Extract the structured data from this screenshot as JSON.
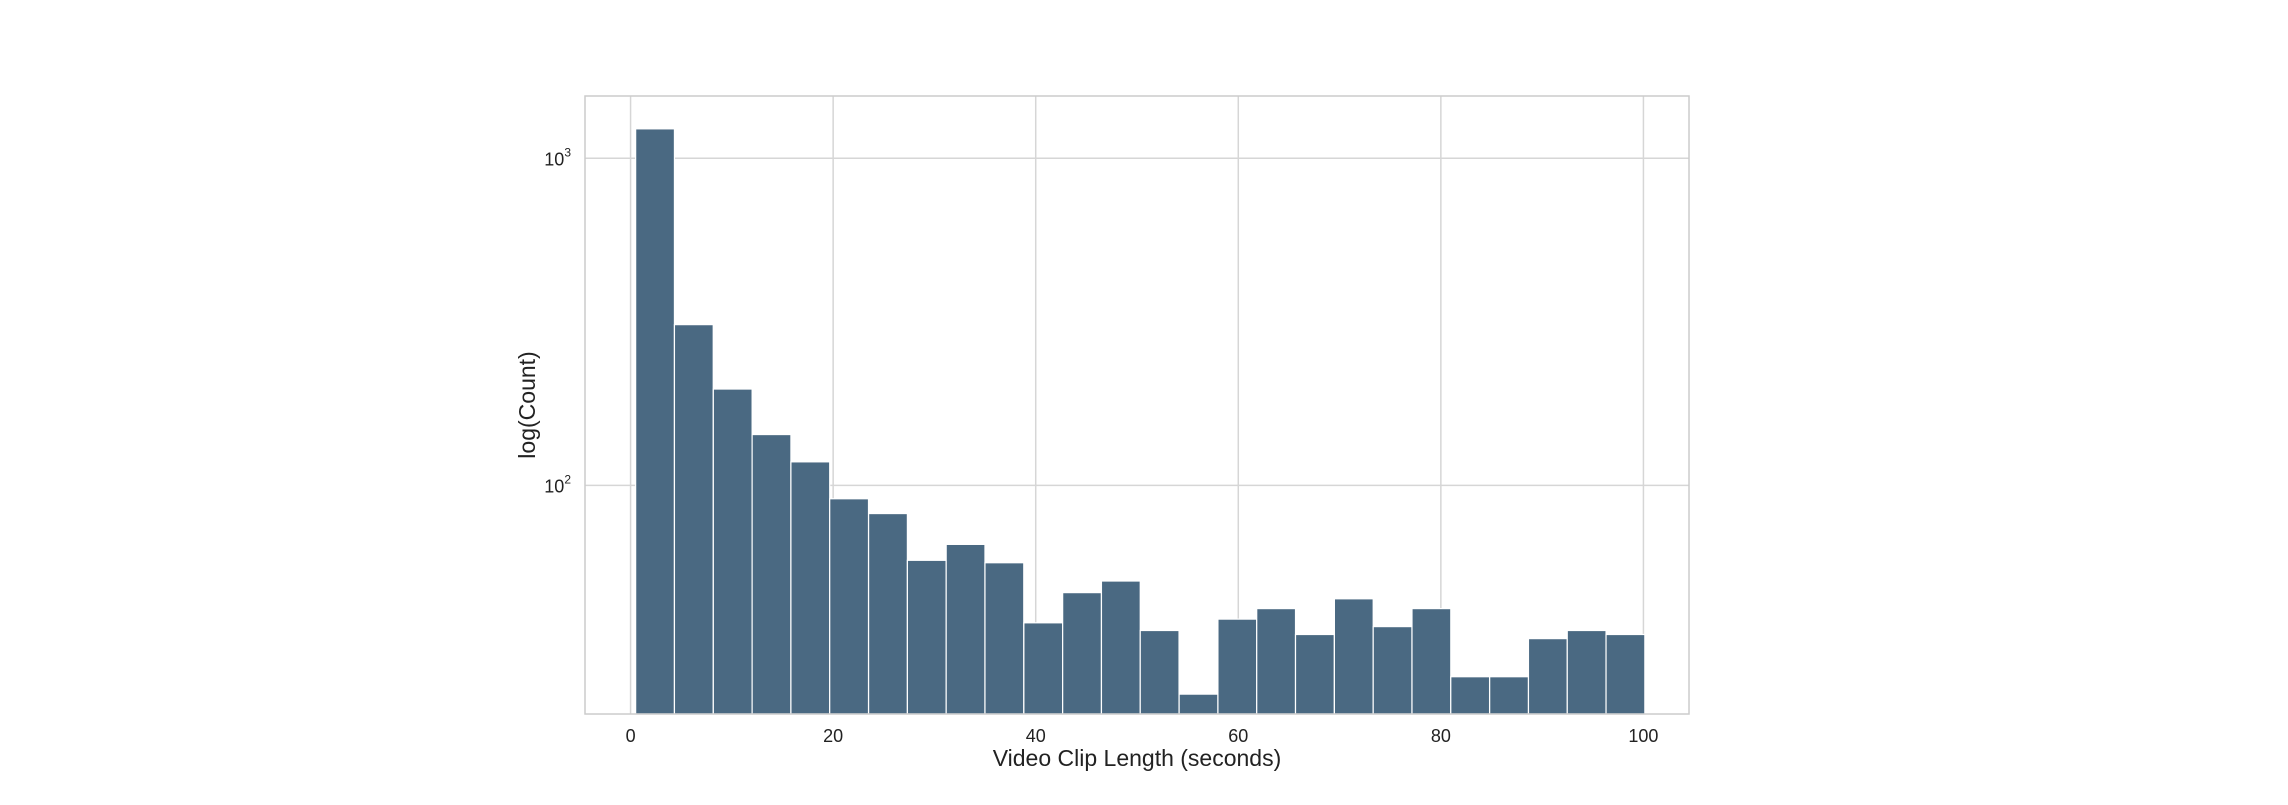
{
  "chart_data": {
    "type": "bar",
    "title": "",
    "xlabel": "Video Clip Length (seconds)",
    "ylabel": "log(Count)",
    "y_scale": "log",
    "grid": true,
    "xlim": [
      -4.5,
      104.5
    ],
    "ylim": [
      20,
      1550
    ],
    "x_ticks": [
      0,
      20,
      40,
      60,
      80,
      100
    ],
    "y_ticks": [
      {
        "value": 100,
        "base": "10",
        "exp": "2"
      },
      {
        "value": 1000,
        "base": "10",
        "exp": "3"
      }
    ],
    "bin_width": 3.83,
    "bin_starts": [
      0.5,
      4.33,
      8.17,
      12.0,
      15.83,
      19.66,
      23.5,
      27.33,
      31.16,
      34.99,
      38.83,
      42.66,
      46.49,
      50.32,
      54.16,
      57.99,
      61.82,
      65.65,
      69.49,
      73.32,
      77.15,
      80.98,
      84.82,
      88.65,
      92.48,
      96.31
    ],
    "values": [
      1230,
      310,
      197,
      143,
      118,
      91,
      82,
      59,
      66,
      58,
      38,
      47,
      51,
      36,
      23,
      39,
      42,
      35,
      45,
      37,
      42,
      26,
      26,
      34,
      36,
      35
    ],
    "colors": {
      "bar": "#4a6982",
      "bar_edge": "#ffffff",
      "grid": "#d6d6d6",
      "axes_frame": "#cccccc",
      "text": "#222222"
    }
  }
}
